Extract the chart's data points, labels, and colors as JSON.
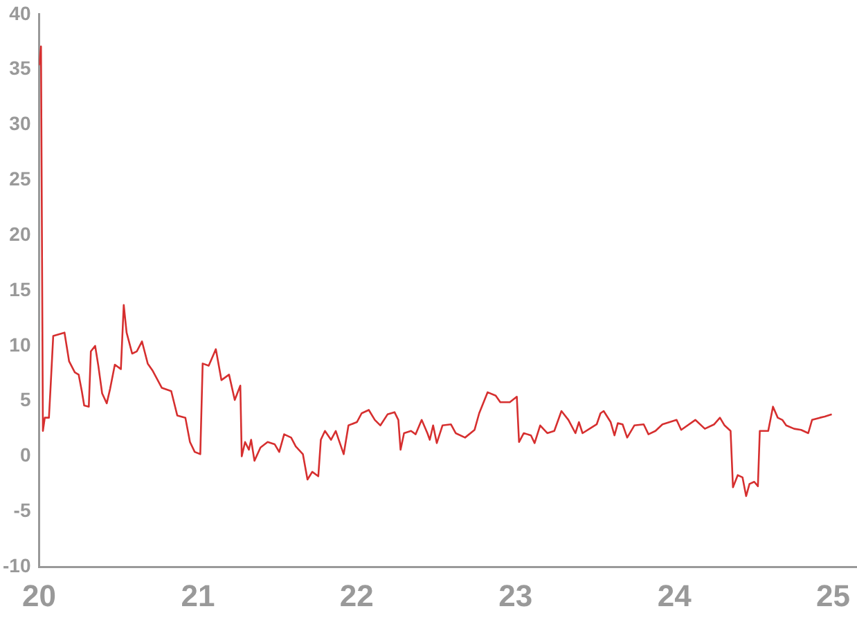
{
  "chart_data": {
    "type": "line",
    "color": "#d62f2f",
    "x": [
      20.0,
      20.012,
      20.024,
      20.036,
      20.062,
      20.071,
      20.089,
      20.16,
      20.189,
      20.225,
      20.249,
      20.269,
      20.284,
      20.313,
      20.326,
      20.353,
      20.373,
      20.397,
      20.426,
      20.447,
      20.477,
      20.515,
      20.533,
      20.551,
      20.586,
      20.615,
      20.648,
      20.684,
      20.713,
      20.773,
      20.832,
      20.87,
      20.921,
      20.95,
      20.98,
      21.015,
      21.03,
      21.068,
      21.113,
      21.148,
      21.196,
      21.232,
      21.267,
      21.276,
      21.297,
      21.321,
      21.335,
      21.356,
      21.394,
      21.439,
      21.483,
      21.512,
      21.543,
      21.587,
      21.616,
      21.661,
      21.69,
      21.72,
      21.758,
      21.774,
      21.8,
      21.838,
      21.868,
      21.889,
      21.918,
      21.948,
      22.001,
      22.031,
      22.076,
      22.114,
      22.149,
      22.194,
      22.238,
      22.262,
      22.276,
      22.298,
      22.342,
      22.371,
      22.409,
      22.445,
      22.46,
      22.481,
      22.504,
      22.54,
      22.593,
      22.623,
      22.682,
      22.742,
      22.771,
      22.824,
      22.875,
      22.904,
      22.964,
      23.008,
      23.022,
      23.052,
      23.097,
      23.12,
      23.155,
      23.2,
      23.244,
      23.289,
      23.333,
      23.377,
      23.399,
      23.422,
      23.466,
      23.511,
      23.535,
      23.555,
      23.599,
      23.623,
      23.644,
      23.674,
      23.703,
      23.748,
      23.807,
      23.837,
      23.881,
      23.925,
      23.97,
      24.014,
      24.043,
      24.132,
      24.192,
      24.251,
      24.287,
      24.316,
      24.354,
      24.369,
      24.399,
      24.429,
      24.452,
      24.473,
      24.503,
      24.526,
      24.538,
      24.591,
      24.621,
      24.651,
      24.68,
      24.704,
      24.754,
      24.798,
      24.843,
      24.867,
      24.917,
      24.947,
      24.991
    ],
    "values": [
      35.4,
      37.1,
      2.3,
      3.5,
      3.5,
      5.9,
      10.9,
      11.2,
      8.6,
      7.6,
      7.4,
      5.9,
      4.6,
      4.5,
      9.5,
      10,
      8.2,
      5.7,
      4.8,
      6.1,
      8.3,
      7.9,
      13.7,
      11.2,
      9.3,
      9.5,
      10.4,
      8.4,
      7.8,
      6.2,
      5.9,
      3.7,
      3.5,
      1.3,
      0.4,
      0.2,
      8.4,
      8.2,
      9.7,
      6.9,
      7.4,
      5.1,
      6.4,
      0,
      1.3,
      0.6,
      1.5,
      -0.4,
      0.8,
      1.3,
      1.1,
      0.4,
      2.0,
      1.7,
      0.9,
      0.2,
      -2.1,
      -1.4,
      -1.8,
      1.5,
      2.3,
      1.5,
      2.3,
      1.4,
      0.2,
      2.8,
      3.1,
      3.9,
      4.2,
      3.3,
      2.8,
      3.8,
      4.0,
      3.3,
      0.6,
      2.1,
      2.3,
      2.0,
      3.3,
      2.1,
      1.5,
      2.8,
      1.2,
      2.8,
      2.9,
      2.1,
      1.7,
      2.4,
      3.9,
      5.8,
      5.5,
      4.9,
      4.9,
      5.4,
      1.3,
      2.1,
      1.9,
      1.2,
      2.8,
      2.1,
      2.3,
      4.1,
      3.3,
      2.1,
      3.1,
      2.1,
      2.5,
      2.9,
      3.9,
      4.1,
      3.1,
      1.9,
      3.0,
      2.9,
      1.7,
      2.8,
      2.9,
      2.0,
      2.3,
      2.9,
      3.1,
      3.3,
      2.4,
      3.3,
      2.5,
      2.9,
      3.5,
      2.8,
      2.3,
      -2.8,
      -1.7,
      -1.9,
      -3.6,
      -2.5,
      -2.3,
      -2.7,
      2.3,
      2.3,
      4.5,
      3.5,
      3.3,
      2.8,
      2.5,
      2.4,
      2.1,
      3.3,
      3.5,
      3.6,
      3.8
    ],
    "xlim": [
      20,
      25.15
    ],
    "xticks": [
      20,
      21,
      22,
      23,
      24,
      25
    ],
    "ylim": [
      -10,
      40
    ],
    "yticks": [
      -10,
      -5,
      0,
      5,
      10,
      15,
      20,
      25,
      30,
      35,
      40
    ]
  }
}
